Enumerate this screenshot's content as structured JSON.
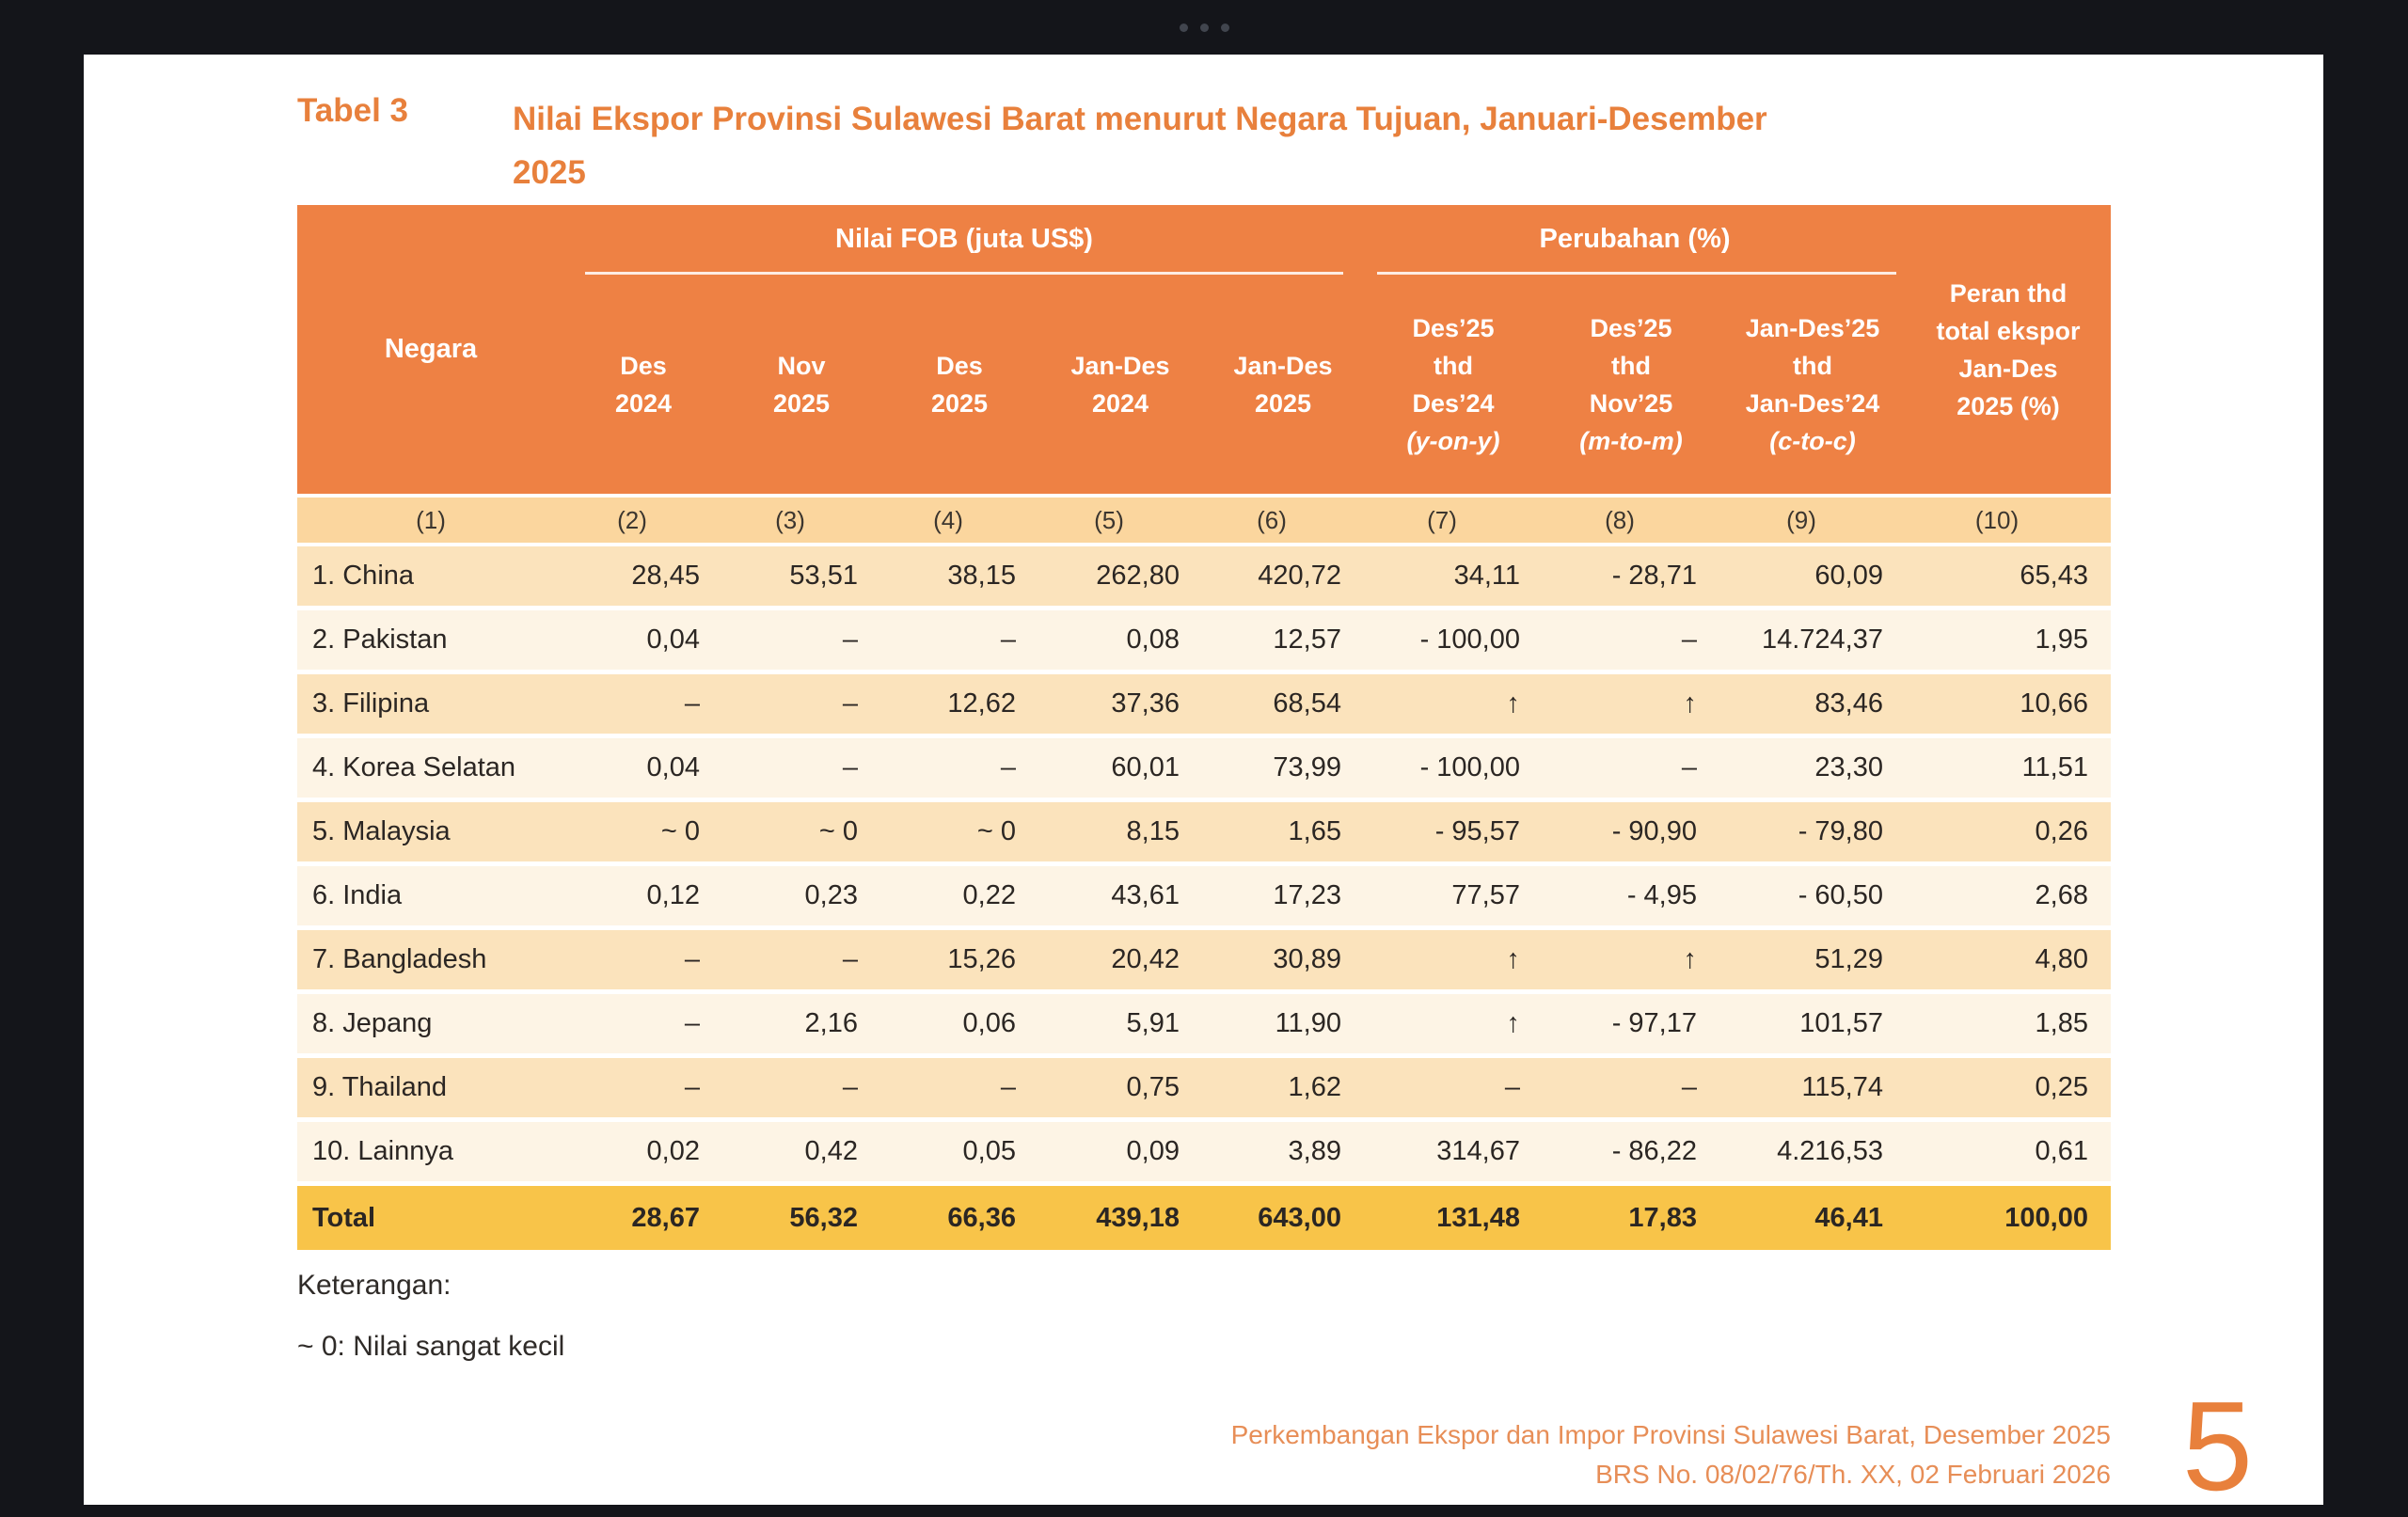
{
  "top_bar": {
    "ellipsis_icon": "horizontal-ellipsis"
  },
  "title": {
    "label": "Tabel 3",
    "line1": "Nilai Ekspor Provinsi Sulawesi Barat menurut Negara Tujuan, Januari-Desember",
    "line2": "2025"
  },
  "table": {
    "group_headers": {
      "negara": "Negara",
      "fob": "Nilai FOB (juta US$)",
      "perubahan": "Perubahan (%)"
    },
    "col_headers": [
      {
        "lines": [
          "Des",
          "2024"
        ]
      },
      {
        "lines": [
          "Nov",
          "2025"
        ]
      },
      {
        "lines": [
          "Des",
          "2025"
        ]
      },
      {
        "lines": [
          "Jan-Des",
          "2024"
        ]
      },
      {
        "lines": [
          "Jan-Des",
          "2025"
        ]
      },
      {
        "lines": [
          "Des’25",
          "thd",
          "Des’24",
          "(y-on-y)"
        ]
      },
      {
        "lines": [
          "Des’25",
          "thd",
          "Nov’25",
          "(m-to-m)"
        ]
      },
      {
        "lines": [
          "Jan-Des’25",
          "thd",
          "Jan-Des’24",
          "(c-to-c)"
        ]
      },
      {
        "lines": [
          "Peran thd",
          "total ekspor",
          "Jan-Des",
          "2025 (%)"
        ]
      }
    ],
    "col_numbers": [
      "(1)",
      "(2)",
      "(3)",
      "(4)",
      "(5)",
      "(6)",
      "(7)",
      "(8)",
      "(9)",
      "(10)"
    ],
    "rows": [
      {
        "cells": [
          "1. China",
          "28,45",
          "53,51",
          "38,15",
          "262,80",
          "420,72",
          "34,11",
          "- 28,71",
          "60,09",
          "65,43"
        ]
      },
      {
        "cells": [
          "2. Pakistan",
          "0,04",
          "–",
          "–",
          "0,08",
          "12,57",
          "- 100,00",
          "–",
          "14.724,37",
          "1,95"
        ]
      },
      {
        "cells": [
          "3. Filipina",
          "–",
          "–",
          "12,62",
          "37,36",
          "68,54",
          "↑",
          "↑",
          "83,46",
          "10,66"
        ]
      },
      {
        "cells": [
          "4. Korea Selatan",
          "0,04",
          "–",
          "–",
          "60,01",
          "73,99",
          "- 100,00",
          "–",
          "23,30",
          "11,51"
        ]
      },
      {
        "cells": [
          "5. Malaysia",
          "~ 0",
          "~ 0",
          "~ 0",
          "8,15",
          "1,65",
          "- 95,57",
          "- 90,90",
          "- 79,80",
          "0,26"
        ]
      },
      {
        "cells": [
          "6. India",
          "0,12",
          "0,23",
          "0,22",
          "43,61",
          "17,23",
          "77,57",
          "- 4,95",
          "- 60,50",
          "2,68"
        ]
      },
      {
        "cells": [
          "7. Bangladesh",
          "–",
          "–",
          "15,26",
          "20,42",
          "30,89",
          "↑",
          "↑",
          "51,29",
          "4,80"
        ]
      },
      {
        "cells": [
          "8. Jepang",
          "–",
          "2,16",
          "0,06",
          "5,91",
          "11,90",
          "↑",
          "- 97,17",
          "101,57",
          "1,85"
        ]
      },
      {
        "cells": [
          "9. Thailand",
          "–",
          "–",
          "–",
          "0,75",
          "1,62",
          "–",
          "–",
          "115,74",
          "0,25"
        ]
      },
      {
        "cells": [
          "10. Lainnya",
          "0,02",
          "0,42",
          "0,05",
          "0,09",
          "3,89",
          "314,67",
          "- 86,22",
          "4.216,53",
          "0,61"
        ]
      }
    ],
    "total": {
      "cells": [
        "Total",
        "28,67",
        "56,32",
        "66,36",
        "439,18",
        "643,00",
        "131,48",
        "17,83",
        "46,41",
        "100,00"
      ]
    }
  },
  "notes": {
    "label": "Keterangan:",
    "line": "~ 0: Nilai sangat kecil"
  },
  "footer": {
    "line1": "Perkembangan Ekspor dan Impor Provinsi Sulawesi Barat, Desember 2025",
    "line2": "BRS No. 08/02/76/Th. XX, 02 Februari 2026",
    "page_number": "5"
  },
  "colors": {
    "accent": "#E8803C",
    "header": "#EE8144",
    "numrow": "#FBD69E",
    "row_a": "#FBE3BC",
    "row_b": "#FDF4E5",
    "total": "#F8C449",
    "footer": "#E78E57",
    "app_bg": "#14151A",
    "page_bg": "#FFFFFF"
  }
}
